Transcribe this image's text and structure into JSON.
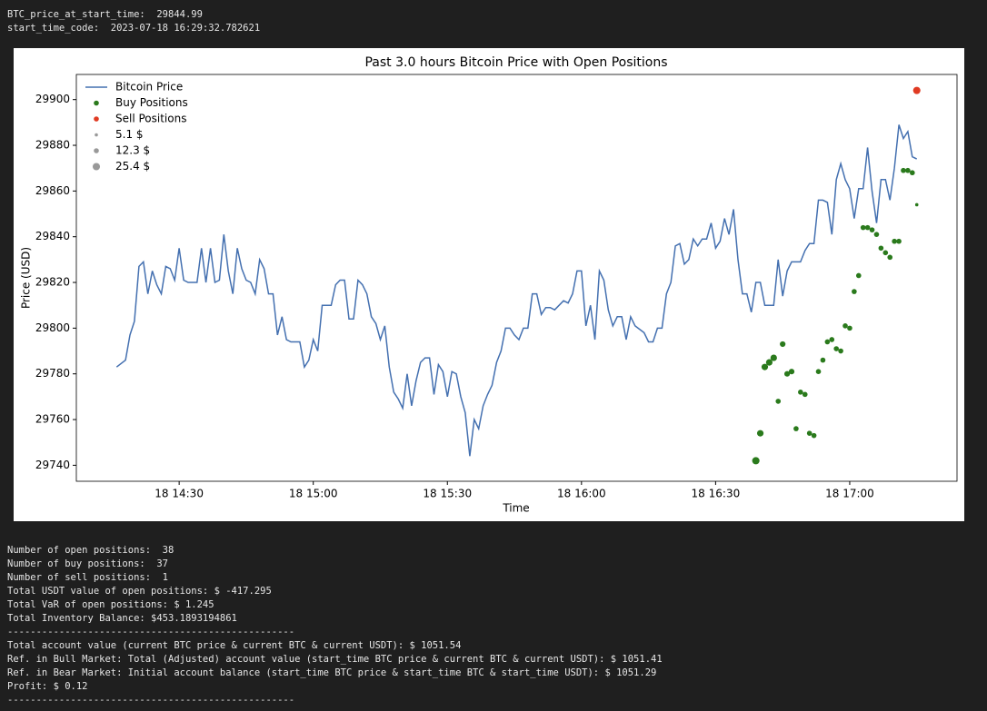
{
  "header": [
    "BTC_price_at_start_time:  29844.99",
    "start_time_code:  2023-07-18 16:29:32.782621"
  ],
  "chart_data": {
    "type": "line",
    "title": "Past 3.0 hours Bitcoin Price with Open Positions",
    "x_label": "Time",
    "y_label": "Price (USD)",
    "xlim": [
      "18 14:07",
      "18 17:24"
    ],
    "xticks": [
      "18 14:30",
      "18 15:00",
      "18 15:30",
      "18 16:00",
      "18 16:30",
      "18 17:00"
    ],
    "ylim": [
      29733,
      29911
    ],
    "yticks": [
      29740,
      29760,
      29780,
      29800,
      29820,
      29840,
      29860,
      29880,
      29900
    ],
    "legend": "upper left",
    "series": [
      {
        "name": "Bitcoin Price",
        "type": "line",
        "color": "#4470b0",
        "x": [
          "18 14:16",
          "18 14:18",
          "18 14:19",
          "18 14:20",
          "18 14:21",
          "18 14:22",
          "18 14:23",
          "18 14:24",
          "18 14:25",
          "18 14:26",
          "18 14:27",
          "18 14:28",
          "18 14:29",
          "18 14:30",
          "18 14:31",
          "18 14:32",
          "18 14:34",
          "18 14:35",
          "18 14:36",
          "18 14:37",
          "18 14:38",
          "18 14:39",
          "18 14:40",
          "18 14:41",
          "18 14:42",
          "18 14:43",
          "18 14:44",
          "18 14:45",
          "18 14:46",
          "18 14:47",
          "18 14:48",
          "18 14:49",
          "18 14:50",
          "18 14:51",
          "18 14:52",
          "18 14:53",
          "18 14:54",
          "18 14:55",
          "18 14:57",
          "18 14:58",
          "18 14:59",
          "18 15:00",
          "18 15:01",
          "18 15:02",
          "18 15:04",
          "18 15:05",
          "18 15:06",
          "18 15:07",
          "18 15:08",
          "18 15:09",
          "18 15:10",
          "18 15:11",
          "18 15:12",
          "18 15:13",
          "18 15:14",
          "18 15:15",
          "18 15:16",
          "18 15:17",
          "18 15:18",
          "18 15:19",
          "18 15:20",
          "18 15:21",
          "18 15:22",
          "18 15:23",
          "18 15:24",
          "18 15:25",
          "18 15:26",
          "18 15:27",
          "18 15:28",
          "18 15:29",
          "18 15:30",
          "18 15:31",
          "18 15:32",
          "18 15:33",
          "18 15:34",
          "18 15:35",
          "18 15:36",
          "18 15:37",
          "18 15:38",
          "18 15:39",
          "18 15:40",
          "18 15:41",
          "18 15:42",
          "18 15:43",
          "18 15:44",
          "18 15:45",
          "18 15:46",
          "18 15:47",
          "18 15:48",
          "18 15:49",
          "18 15:50",
          "18 15:51",
          "18 15:52",
          "18 15:53",
          "18 15:54",
          "18 15:55",
          "18 15:56",
          "18 15:57",
          "18 15:58",
          "18 15:59",
          "18 16:00",
          "18 16:01",
          "18 16:02",
          "18 16:03",
          "18 16:04",
          "18 16:05",
          "18 16:06",
          "18 16:07",
          "18 16:08",
          "18 16:09",
          "18 16:10",
          "18 16:11",
          "18 16:12",
          "18 16:14",
          "18 16:15",
          "18 16:16",
          "18 16:17",
          "18 16:18",
          "18 16:19",
          "18 16:20",
          "18 16:21",
          "18 16:22",
          "18 16:23",
          "18 16:24",
          "18 16:25",
          "18 16:26",
          "18 16:27",
          "18 16:28",
          "18 16:29",
          "18 16:30",
          "18 16:31",
          "18 16:32",
          "18 16:33",
          "18 16:34",
          "18 16:35",
          "18 16:36",
          "18 16:37",
          "18 16:38",
          "18 16:39",
          "18 16:40",
          "18 16:41",
          "18 16:43",
          "18 16:44",
          "18 16:45",
          "18 16:46",
          "18 16:47",
          "18 16:49",
          "18 16:50",
          "18 16:51",
          "18 16:52",
          "18 16:53",
          "18 16:54",
          "18 16:55",
          "18 16:56",
          "18 16:57",
          "18 16:58",
          "18 16:59",
          "18 17:00",
          "18 17:01",
          "18 17:02",
          "18 17:03",
          "18 17:04",
          "18 17:05",
          "18 17:06",
          "18 17:07",
          "18 17:08",
          "18 17:09",
          "18 17:10",
          "18 17:11",
          "18 17:12",
          "18 17:13",
          "18 17:14",
          "18 17:15"
        ],
        "values": [
          29783,
          29786,
          29797,
          29803,
          29827,
          29829,
          29815,
          29825,
          29819,
          29815,
          29827,
          29826,
          29821,
          29835,
          29821,
          29820,
          29820,
          29835,
          29820,
          29835,
          29820,
          29821,
          29841,
          29825,
          29815,
          29835,
          29826,
          29821,
          29820,
          29815,
          29830,
          29826,
          29815,
          29815,
          29797,
          29805,
          29795,
          29794,
          29794,
          29783,
          29786,
          29795,
          29790,
          29810,
          29810,
          29819,
          29821,
          29821,
          29804,
          29804,
          29821,
          29819,
          29815,
          29805,
          29802,
          29795,
          29801,
          29783,
          29772,
          29769,
          29765,
          29780,
          29766,
          29777,
          29785,
          29787,
          29787,
          29771,
          29784,
          29781,
          29770,
          29781,
          29780,
          29770,
          29763,
          29744,
          29760,
          29756,
          29766,
          29771,
          29775,
          29785,
          29790,
          29800,
          29800,
          29797,
          29795,
          29800,
          29800,
          29815,
          29815,
          29806,
          29809,
          29809,
          29808,
          29810,
          29812,
          29811,
          29815,
          29825,
          29825,
          29801,
          29810,
          29795,
          29825,
          29821,
          29808,
          29801,
          29805,
          29805,
          29795,
          29805,
          29801,
          29798,
          29794,
          29794,
          29800,
          29800,
          29815,
          29820,
          29836,
          29837,
          29828,
          29830,
          29839,
          29836,
          29839,
          29839,
          29846,
          29835,
          29838,
          29848,
          29841,
          29852,
          29830,
          29815,
          29815,
          29807,
          29820,
          29820,
          29810,
          29810,
          29830,
          29814,
          29825,
          29829,
          29829,
          29834,
          29837,
          29837,
          29856,
          29856,
          29855,
          29841,
          29865,
          29872,
          29865,
          29861,
          29848,
          29861,
          29861,
          29879,
          29860,
          29846,
          29865,
          29865,
          29856,
          29870,
          29889,
          29883,
          29886,
          29875,
          29874
        ]
      },
      {
        "name": "Buy Positions",
        "type": "scatter",
        "color": "#2a7a1c",
        "x": [
          "18 16:39",
          "18 16:40",
          "18 16:41",
          "18 16:42",
          "18 16:43",
          "18 16:44",
          "18 16:45",
          "18 16:46",
          "18 16:47",
          "18 16:48",
          "18 16:49",
          "18 16:50",
          "18 16:51",
          "18 16:52",
          "18 16:53",
          "18 16:54",
          "18 16:55",
          "18 16:56",
          "18 16:57",
          "18 16:58",
          "18 16:59",
          "18 17:00",
          "18 17:01",
          "18 17:02",
          "18 17:03",
          "18 17:04",
          "18 17:05",
          "18 17:06",
          "18 17:07",
          "18 17:08",
          "18 17:09",
          "18 17:10",
          "18 17:11",
          "18 17:12",
          "18 17:13",
          "18 17:14",
          "18 17:15"
        ],
        "values": [
          29742,
          29754,
          29783,
          29785,
          29787,
          29768,
          29793,
          29780,
          29781,
          29756,
          29772,
          29771,
          29754,
          29753,
          29781,
          29786,
          29794,
          29795,
          29791,
          29790,
          29801,
          29800,
          29816,
          29823,
          29844,
          29844,
          29843,
          29841,
          29835,
          29833,
          29831,
          29838,
          29838,
          29869,
          29869,
          29868,
          29854
        ],
        "sizes": [
          25.4,
          20,
          20,
          20,
          20,
          12.3,
          15,
          15,
          15,
          12.3,
          12.3,
          12.3,
          12.3,
          12.3,
          12.3,
          12.3,
          12.3,
          12.3,
          12.3,
          12.3,
          12.3,
          12.3,
          12.3,
          12.3,
          12.3,
          12.3,
          12.3,
          12.3,
          12.3,
          12.3,
          12.3,
          12.3,
          12.3,
          12.3,
          12.3,
          12.3,
          5.1
        ]
      },
      {
        "name": "Sell Positions",
        "type": "scatter",
        "color": "#e03a22",
        "x": [
          "18 17:15"
        ],
        "values": [
          29904
        ],
        "sizes": [
          25.4
        ]
      }
    ],
    "size_legend": [
      {
        "value": 5.1,
        "label": "5.1 $"
      },
      {
        "value": 12.3,
        "label": "12.3 $"
      },
      {
        "value": 25.4,
        "label": "25.4 $"
      }
    ]
  },
  "footer": [
    "Number of open positions:  38",
    "Number of buy positions:  37",
    "Number of sell positions:  1",
    "Total USDT value of open positions: $ -417.295",
    "Total VaR of open positions: $ 1.245",
    "Total Inventory Balance: $453.1893194861",
    "--------------------------------------------------",
    "Total account value (current BTC price & current BTC & current USDT): $ 1051.54",
    "Ref. in Bull Market: Total (Adjusted) account value (start_time BTC price & current BTC & current USDT): $ 1051.41",
    "Ref. in Bear Market: Initial account balance (start_time BTC price & start_time BTC & start_time USDT): $ 1051.29",
    "Profit: $ 0.12",
    "--------------------------------------------------"
  ]
}
